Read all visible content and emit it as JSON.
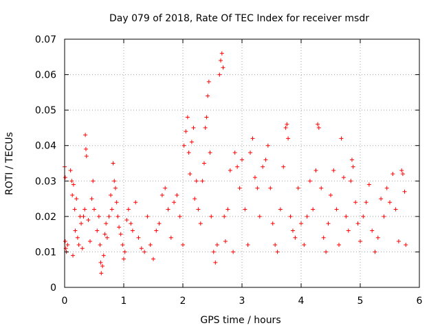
{
  "chart_data": {
    "type": "scatter",
    "title": "Day 079 of 2018, Rate Of TEC Index for receiver msdr",
    "xlabel": "GPS time / hours",
    "ylabel": "ROTI / TECUs",
    "xlim": [
      0,
      6
    ],
    "ylim": [
      0,
      0.07
    ],
    "xticks": [
      "0",
      "1",
      "2",
      "3",
      "4",
      "5",
      "6"
    ],
    "yticks": [
      "0",
      "0.01",
      "0.02",
      "0.03",
      "0.04",
      "0.05",
      "0.06",
      "0.07"
    ],
    "grid": true,
    "marker": "+",
    "color": "#ff0000",
    "series": [
      {
        "name": "msdr",
        "points": [
          [
            0.0,
            0.034
          ],
          [
            0.01,
            0.031
          ],
          [
            0.01,
            0.013
          ],
          [
            0.02,
            0.011
          ],
          [
            0.03,
            0.01
          ],
          [
            0.05,
            0.012
          ],
          [
            0.1,
            0.033
          ],
          [
            0.12,
            0.03
          ],
          [
            0.13,
            0.026
          ],
          [
            0.14,
            0.009
          ],
          [
            0.15,
            0.029
          ],
          [
            0.17,
            0.022
          ],
          [
            0.18,
            0.016
          ],
          [
            0.2,
            0.025
          ],
          [
            0.22,
            0.014
          ],
          [
            0.24,
            0.012
          ],
          [
            0.26,
            0.02
          ],
          [
            0.28,
            0.018
          ],
          [
            0.3,
            0.011
          ],
          [
            0.32,
            0.02
          ],
          [
            0.34,
            0.022
          ],
          [
            0.35,
            0.043
          ],
          [
            0.36,
            0.039
          ],
          [
            0.37,
            0.037
          ],
          [
            0.4,
            0.019
          ],
          [
            0.43,
            0.013
          ],
          [
            0.46,
            0.025
          ],
          [
            0.48,
            0.03
          ],
          [
            0.5,
            0.022
          ],
          [
            0.55,
            0.016
          ],
          [
            0.58,
            0.02
          ],
          [
            0.6,
            0.012
          ],
          [
            0.61,
            0.007
          ],
          [
            0.62,
            0.004
          ],
          [
            0.64,
            0.006
          ],
          [
            0.66,
            0.009
          ],
          [
            0.68,
            0.015
          ],
          [
            0.7,
            0.018
          ],
          [
            0.72,
            0.014
          ],
          [
            0.75,
            0.02
          ],
          [
            0.78,
            0.026
          ],
          [
            0.8,
            0.022
          ],
          [
            0.82,
            0.035
          ],
          [
            0.84,
            0.03
          ],
          [
            0.86,
            0.028
          ],
          [
            0.88,
            0.024
          ],
          [
            0.9,
            0.02
          ],
          [
            0.92,
            0.017
          ],
          [
            0.95,
            0.015
          ],
          [
            0.98,
            0.012
          ],
          [
            1.0,
            0.008
          ],
          [
            1.02,
            0.01
          ],
          [
            1.05,
            0.019
          ],
          [
            1.08,
            0.022
          ],
          [
            1.12,
            0.018
          ],
          [
            1.15,
            0.016
          ],
          [
            1.2,
            0.024
          ],
          [
            1.25,
            0.014
          ],
          [
            1.3,
            0.011
          ],
          [
            1.35,
            0.01
          ],
          [
            1.4,
            0.02
          ],
          [
            1.45,
            0.012
          ],
          [
            1.5,
            0.008
          ],
          [
            1.55,
            0.016
          ],
          [
            1.6,
            0.018
          ],
          [
            1.65,
            0.026
          ],
          [
            1.7,
            0.028
          ],
          [
            1.75,
            0.022
          ],
          [
            1.8,
            0.014
          ],
          [
            1.85,
            0.024
          ],
          [
            1.9,
            0.026
          ],
          [
            1.95,
            0.02
          ],
          [
            2.0,
            0.012
          ],
          [
            2.02,
            0.04
          ],
          [
            2.05,
            0.044
          ],
          [
            2.08,
            0.048
          ],
          [
            2.1,
            0.038
          ],
          [
            2.12,
            0.032
          ],
          [
            2.15,
            0.041
          ],
          [
            2.18,
            0.045
          ],
          [
            2.2,
            0.025
          ],
          [
            2.23,
            0.03
          ],
          [
            2.26,
            0.022
          ],
          [
            2.3,
            0.018
          ],
          [
            2.33,
            0.03
          ],
          [
            2.36,
            0.035
          ],
          [
            2.38,
            0.045
          ],
          [
            2.4,
            0.048
          ],
          [
            2.42,
            0.054
          ],
          [
            2.44,
            0.058
          ],
          [
            2.46,
            0.038
          ],
          [
            2.48,
            0.02
          ],
          [
            2.52,
            0.01
          ],
          [
            2.55,
            0.007
          ],
          [
            2.58,
            0.012
          ],
          [
            2.62,
            0.06
          ],
          [
            2.64,
            0.064
          ],
          [
            2.66,
            0.066
          ],
          [
            2.68,
            0.062
          ],
          [
            2.7,
            0.02
          ],
          [
            2.72,
            0.013
          ],
          [
            2.76,
            0.022
          ],
          [
            2.8,
            0.033
          ],
          [
            2.85,
            0.01
          ],
          [
            2.88,
            0.038
          ],
          [
            2.92,
            0.034
          ],
          [
            2.96,
            0.028
          ],
          [
            3.0,
            0.036
          ],
          [
            3.05,
            0.022
          ],
          [
            3.1,
            0.012
          ],
          [
            3.14,
            0.038
          ],
          [
            3.18,
            0.042
          ],
          [
            3.22,
            0.031
          ],
          [
            3.26,
            0.028
          ],
          [
            3.3,
            0.02
          ],
          [
            3.35,
            0.034
          ],
          [
            3.4,
            0.036
          ],
          [
            3.44,
            0.04
          ],
          [
            3.48,
            0.028
          ],
          [
            3.52,
            0.018
          ],
          [
            3.56,
            0.012
          ],
          [
            3.6,
            0.01
          ],
          [
            3.65,
            0.022
          ],
          [
            3.7,
            0.034
          ],
          [
            3.74,
            0.045
          ],
          [
            3.76,
            0.046
          ],
          [
            3.78,
            0.042
          ],
          [
            3.82,
            0.02
          ],
          [
            3.86,
            0.016
          ],
          [
            3.9,
            0.014
          ],
          [
            3.95,
            0.028
          ],
          [
            4.0,
            0.018
          ],
          [
            4.05,
            0.012
          ],
          [
            4.1,
            0.02
          ],
          [
            4.15,
            0.03
          ],
          [
            4.2,
            0.022
          ],
          [
            4.25,
            0.033
          ],
          [
            4.28,
            0.046
          ],
          [
            4.3,
            0.045
          ],
          [
            4.34,
            0.028
          ],
          [
            4.38,
            0.014
          ],
          [
            4.42,
            0.01
          ],
          [
            4.46,
            0.018
          ],
          [
            4.5,
            0.026
          ],
          [
            4.55,
            0.033
          ],
          [
            4.6,
            0.022
          ],
          [
            4.64,
            0.012
          ],
          [
            4.68,
            0.042
          ],
          [
            4.72,
            0.031
          ],
          [
            4.76,
            0.02
          ],
          [
            4.8,
            0.016
          ],
          [
            4.84,
            0.03
          ],
          [
            4.86,
            0.036
          ],
          [
            4.88,
            0.034
          ],
          [
            4.92,
            0.024
          ],
          [
            4.96,
            0.018
          ],
          [
            5.0,
            0.013
          ],
          [
            5.05,
            0.02
          ],
          [
            5.1,
            0.024
          ],
          [
            5.15,
            0.029
          ],
          [
            5.2,
            0.016
          ],
          [
            5.25,
            0.01
          ],
          [
            5.3,
            0.014
          ],
          [
            5.35,
            0.025
          ],
          [
            5.4,
            0.02
          ],
          [
            5.45,
            0.028
          ],
          [
            5.5,
            0.024
          ],
          [
            5.55,
            0.032
          ],
          [
            5.6,
            0.022
          ],
          [
            5.65,
            0.013
          ],
          [
            5.7,
            0.033
          ],
          [
            5.72,
            0.032
          ],
          [
            5.75,
            0.027
          ],
          [
            5.77,
            0.012
          ]
        ]
      }
    ]
  }
}
